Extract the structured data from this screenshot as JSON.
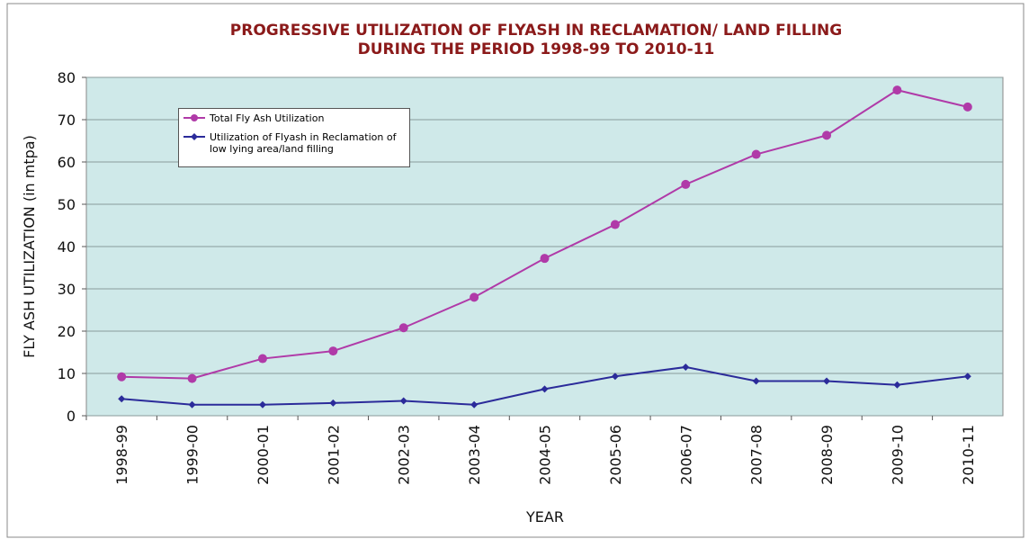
{
  "chart_data": {
    "type": "line",
    "title": "PROGRESSIVE UTILIZATION OF FLYASH IN RECLAMATION/ LAND FILLING",
    "subtitle": "DURING THE PERIOD 1998-99 TO 2010-11",
    "x_label": "YEAR",
    "y_label": "FLY ASH UTILIZATION  (in mtpa)",
    "categories": [
      "1998-99",
      "1999-00",
      "2000-01",
      "2001-02",
      "2002-03",
      "2003-04",
      "2004-05",
      "2005-06",
      "2006-07",
      "2007-08",
      "2008-09",
      "2009-10",
      "2010-11"
    ],
    "series": [
      {
        "name": "Total Fly Ash Utilization",
        "color": "#b03aa8",
        "values": [
          9.2,
          8.8,
          13.5,
          15.3,
          20.8,
          28.0,
          37.2,
          45.2,
          54.7,
          61.8,
          66.3,
          77.0,
          73.0
        ]
      },
      {
        "name": "Utilization of Flyash in Reclamation of low lying area/land filling",
        "color": "#2b2b9a",
        "values": [
          4.0,
          2.6,
          2.6,
          3.0,
          3.5,
          2.6,
          6.3,
          9.3,
          11.5,
          8.2,
          8.2,
          7.3,
          9.3
        ]
      }
    ],
    "ylim": [
      0,
      80
    ],
    "yticks": [
      0,
      10,
      20,
      30,
      40,
      50,
      60,
      70,
      80
    ],
    "grid": true,
    "legend": "upper left"
  }
}
